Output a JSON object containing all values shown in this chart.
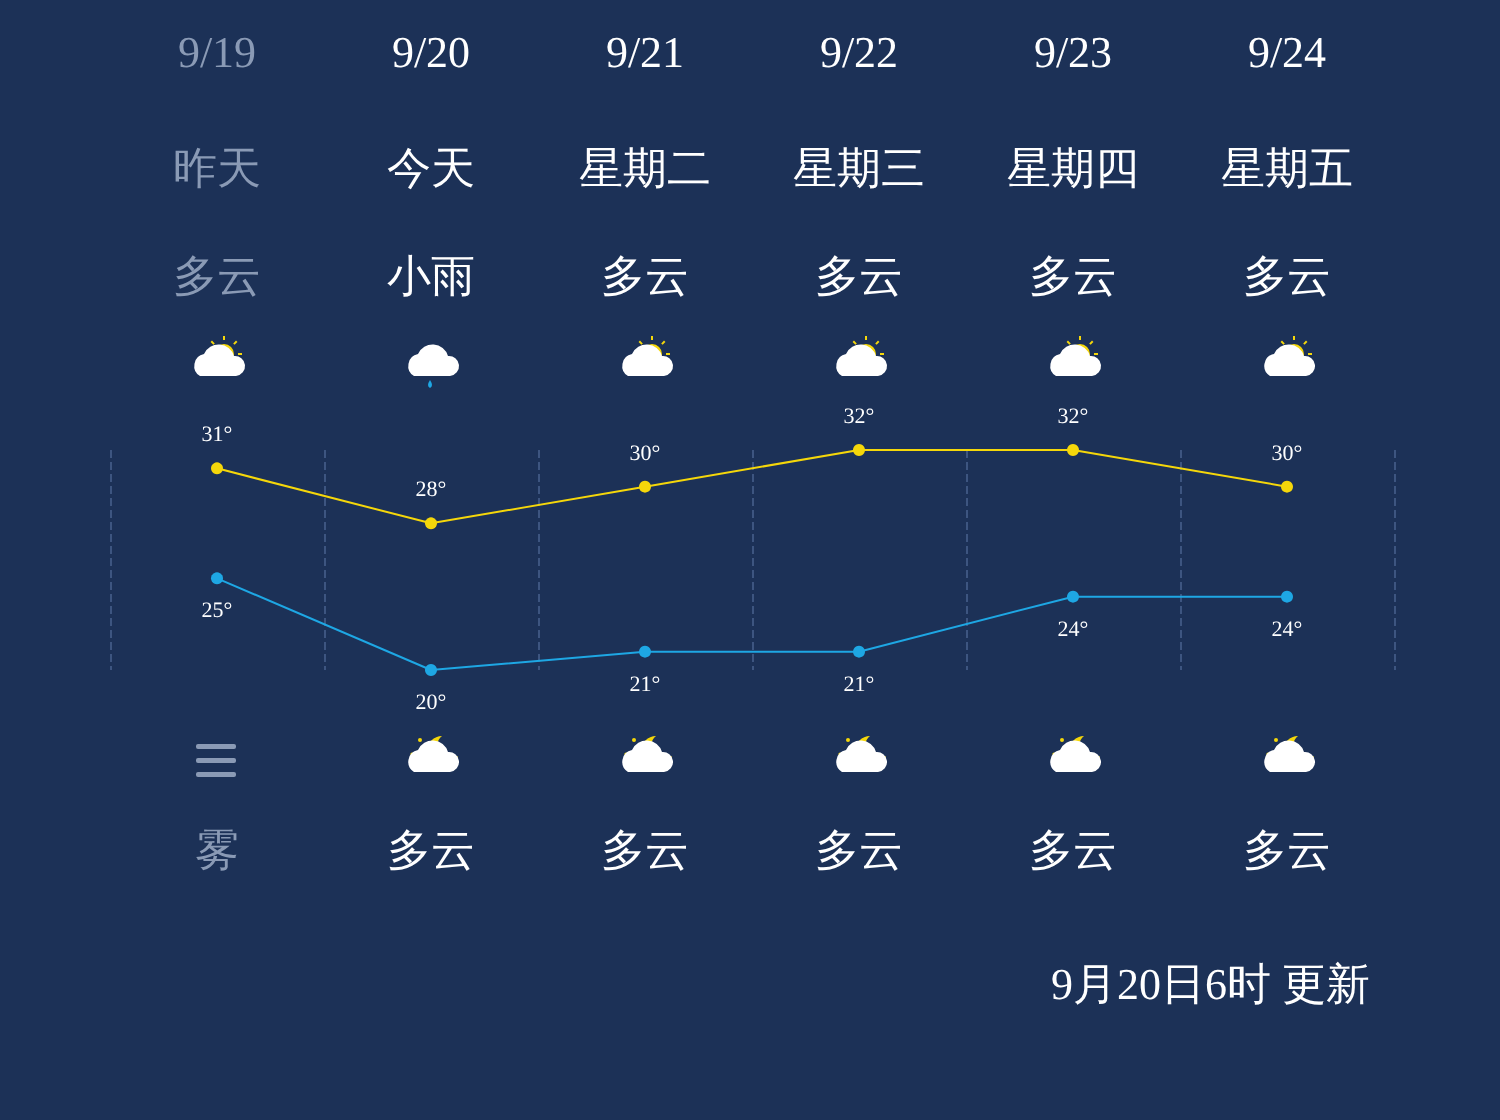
{
  "chart_data": {
    "type": "line",
    "categories": [
      "9/19",
      "9/20",
      "9/21",
      "9/22",
      "9/23",
      "9/24"
    ],
    "series": [
      {
        "color": "#f5d70a",
        "values": [
          31,
          28,
          30,
          32,
          32,
          30
        ],
        "value_labels": [
          "31°",
          "28°",
          "30°",
          "32°",
          "32°",
          "30°"
        ]
      },
      {
        "color": "#1ea7e4",
        "values": [
          25,
          20,
          21,
          21,
          24,
          24
        ],
        "value_labels": [
          "25°",
          "20°",
          "21°",
          "21°",
          "24°",
          "24°"
        ]
      }
    ],
    "data_labels": true,
    "marker": "circle",
    "grid": "x",
    "annotations": [
      "昨天",
      "今天",
      "星期二",
      "星期三",
      "星期四",
      "星期五",
      "多云",
      "小雨",
      "多云",
      "多云",
      "多云",
      "多云",
      "雾",
      "多云",
      "多云",
      "多云",
      "多云",
      "多云",
      "9月20日6时 更新"
    ]
  }
}
